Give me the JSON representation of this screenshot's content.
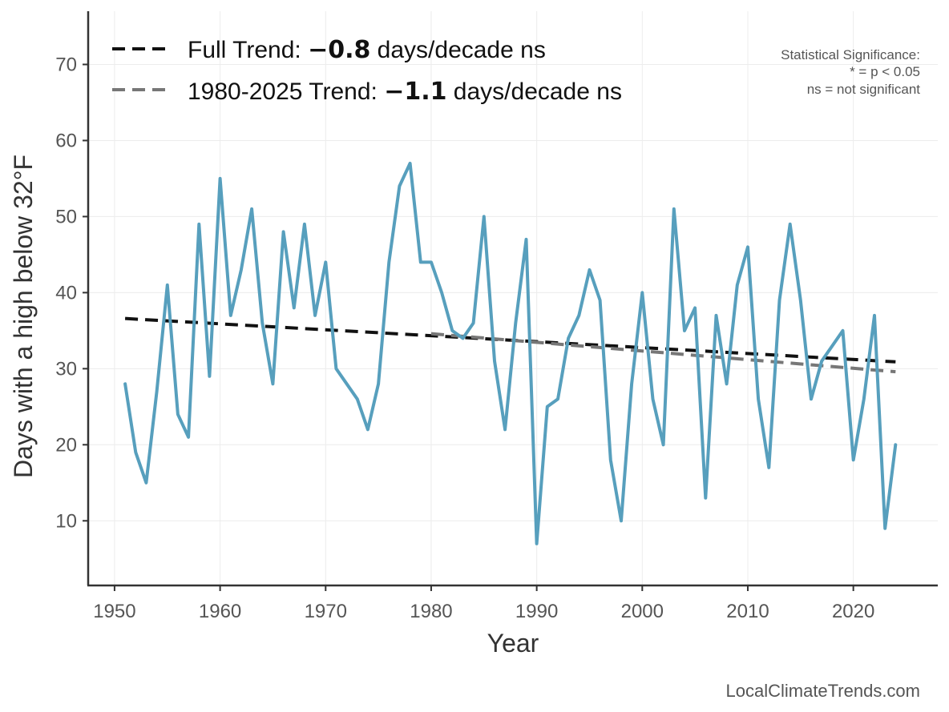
{
  "chart_data": {
    "type": "line",
    "xlabel": "Year",
    "ylabel": "Days with a high below 32°F",
    "xlim": [
      1947.5,
      2028
    ],
    "ylim": [
      1.5,
      77
    ],
    "x_ticks": [
      1950,
      1960,
      1970,
      1980,
      1990,
      2000,
      2010,
      2020
    ],
    "y_ticks": [
      10,
      20,
      30,
      40,
      50,
      60,
      70
    ],
    "grid": true,
    "legend_position": "top-left",
    "series": [
      {
        "color": "#579fbd",
        "x": [
          1951,
          1952,
          1953,
          1954,
          1955,
          1956,
          1957,
          1958,
          1959,
          1960,
          1961,
          1962,
          1963,
          1964,
          1965,
          1966,
          1967,
          1968,
          1969,
          1970,
          1971,
          1973,
          1974,
          1975,
          1976,
          1977,
          1978,
          1979,
          1980,
          1981,
          1982,
          1983,
          1984,
          1985,
          1986,
          1987,
          1988,
          1989,
          1990,
          1991,
          1992,
          1993,
          1994,
          1995,
          1996,
          1997,
          1998,
          1999,
          2000,
          2001,
          2002,
          2003,
          2004,
          2005,
          2006,
          2007,
          2008,
          2009,
          2010,
          2011,
          2012,
          2013,
          2014,
          2015,
          2016,
          2017,
          2019,
          2020,
          2021,
          2022,
          2023,
          2024
        ],
        "values": [
          28,
          19,
          15,
          27,
          41,
          24,
          21,
          49,
          29,
          55,
          37,
          43,
          51,
          36,
          28,
          48,
          38,
          49,
          37,
          44,
          30,
          26,
          22,
          28,
          44,
          54,
          57,
          44,
          44,
          40,
          35,
          34,
          36,
          50,
          31,
          22,
          36,
          47,
          7,
          25,
          26,
          34,
          37,
          43,
          39,
          18,
          10,
          28,
          40,
          26,
          20,
          51,
          35,
          38,
          13,
          37,
          28,
          41,
          46,
          26,
          17,
          39,
          49,
          39,
          26,
          31,
          35,
          18,
          26,
          37,
          9,
          20
        ]
      }
    ],
    "trends": [
      {
        "label_prefix": "Full Trend: ",
        "value_label": "−0.8",
        "label_suffix": " days/decade ns",
        "color": "#111111",
        "x": [
          1951,
          2024
        ],
        "values": [
          36.6,
          30.9
        ]
      },
      {
        "label_prefix": "1980-2025 Trend: ",
        "value_label": "−1.1",
        "label_suffix": " days/decade ns",
        "color": "#777777",
        "x": [
          1980,
          2024
        ],
        "values": [
          34.6,
          29.6
        ]
      }
    ],
    "significance_note": [
      "Statistical Significance:",
      "* = p < 0.05",
      "ns = not significant"
    ],
    "source": "LocalClimateTrends.com"
  }
}
